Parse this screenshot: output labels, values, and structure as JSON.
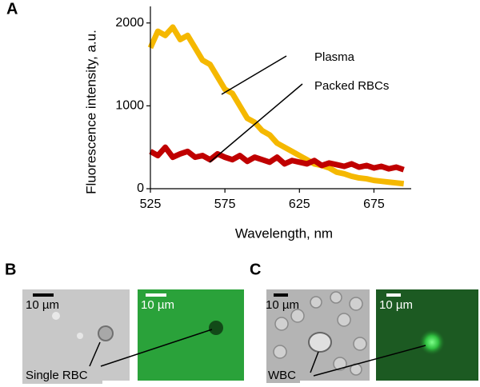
{
  "chart_data": {
    "type": "line",
    "panel_label": "A",
    "x_label": "Wavelength, nm",
    "y_label": "Fluorescence intensity, a.u.",
    "x": [
      525,
      530,
      535,
      540,
      545,
      550,
      555,
      560,
      565,
      570,
      575,
      580,
      585,
      590,
      595,
      600,
      605,
      610,
      615,
      620,
      625,
      630,
      635,
      640,
      645,
      650,
      655,
      660,
      665,
      670,
      675,
      680,
      685,
      690,
      695
    ],
    "series": [
      {
        "name": "Plasma",
        "color": "#f5b800",
        "values": [
          1700,
          1900,
          1850,
          1950,
          1800,
          1850,
          1700,
          1550,
          1500,
          1350,
          1200,
          1150,
          1000,
          850,
          800,
          700,
          650,
          550,
          500,
          450,
          400,
          350,
          300,
          280,
          250,
          200,
          180,
          150,
          130,
          120,
          100,
          90,
          80,
          70,
          60
        ]
      },
      {
        "name": "Packed RBCs",
        "color": "#c00000",
        "values": [
          450,
          400,
          500,
          380,
          420,
          450,
          380,
          400,
          350,
          420,
          380,
          350,
          400,
          330,
          380,
          350,
          320,
          380,
          300,
          340,
          320,
          300,
          340,
          280,
          310,
          290,
          270,
          300,
          260,
          280,
          250,
          270,
          240,
          260,
          230
        ]
      }
    ],
    "xlim": [
      525,
      700
    ],
    "xticks": [
      525,
      575,
      625,
      675
    ],
    "ylim": [
      0,
      2200
    ],
    "yticks": [
      0,
      1000,
      2000
    ]
  },
  "panels": {
    "B": {
      "label": "B",
      "scale_left": "10 µm",
      "scale_right": "10 µm",
      "annotation": "Single RBC"
    },
    "C": {
      "label": "C",
      "scale_left": "10 µm",
      "scale_right": "10 µm",
      "annotation": "WBC"
    }
  }
}
